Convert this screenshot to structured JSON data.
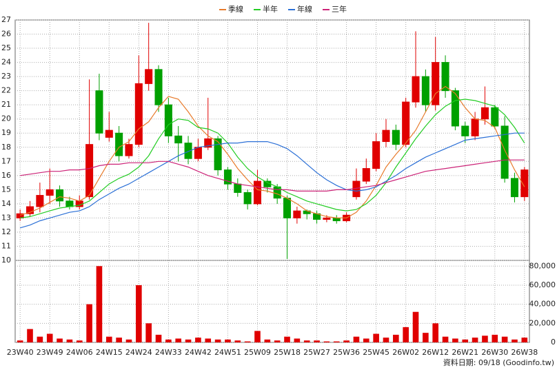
{
  "chart_data": {
    "type": "candlestick",
    "categories": [
      "23W40",
      null,
      null,
      "23W49",
      null,
      null,
      "24W06",
      null,
      null,
      "24W15",
      null,
      null,
      "24W24",
      null,
      null,
      "24W33",
      null,
      null,
      "24W42",
      null,
      null,
      "24W51",
      null,
      null,
      "25W09",
      null,
      null,
      "25W18",
      null,
      null,
      "25W27",
      null,
      null,
      "25W36",
      null,
      null,
      "25W45",
      null,
      null,
      "26W02",
      null,
      null,
      "26W12",
      null,
      null,
      "26W21",
      null,
      null,
      "26W30",
      null,
      null,
      "26W38"
    ],
    "open": [
      13.0,
      13.3,
      13.8,
      14.6,
      15.0,
      14.2,
      13.8,
      14.5,
      22.0,
      18.7,
      19.0,
      17.4,
      18.2,
      22.5,
      23.5,
      21.0,
      18.8,
      18.3,
      17.2,
      18.0,
      18.6,
      16.4,
      15.4,
      14.8,
      14.0,
      15.6,
      15.2,
      14.4,
      13.0,
      13.5,
      13.3,
      12.9,
      13.0,
      12.8,
      14.5,
      15.6,
      16.5,
      18.4,
      19.2,
      18.2,
      21.2,
      23.0,
      21.0,
      24.0,
      22.0,
      19.5,
      18.8,
      20.0,
      20.8,
      19.5,
      15.8,
      14.5
    ],
    "high": [
      13.6,
      14.2,
      15.5,
      16.5,
      15.3,
      14.5,
      14.6,
      22.8,
      23.2,
      20.5,
      19.5,
      18.6,
      24.5,
      26.8,
      23.8,
      21.5,
      19.5,
      18.8,
      18.6,
      21.5,
      18.8,
      16.6,
      15.8,
      15.0,
      16.4,
      15.8,
      15.4,
      14.6,
      13.8,
      13.6,
      13.5,
      13.2,
      13.2,
      13.4,
      16.5,
      17.2,
      19.0,
      20.0,
      19.6,
      21.5,
      26.2,
      23.5,
      25.8,
      24.5,
      22.2,
      19.8,
      20.5,
      22.3,
      21.0,
      20.2,
      16.2,
      16.6
    ],
    "low": [
      12.8,
      13.1,
      13.4,
      14.0,
      13.8,
      13.6,
      13.6,
      14.3,
      18.5,
      18.4,
      17.0,
      17.2,
      18.0,
      22.0,
      20.5,
      18.3,
      17.0,
      16.8,
      17.0,
      17.8,
      16.0,
      15.0,
      14.5,
      13.6,
      13.9,
      14.8,
      14.0,
      10.1,
      12.6,
      12.9,
      12.6,
      12.7,
      12.6,
      12.7,
      14.3,
      15.4,
      16.3,
      18.0,
      17.8,
      18.0,
      20.8,
      20.5,
      20.6,
      21.5,
      19.2,
      18.3,
      18.5,
      19.6,
      19.3,
      15.5,
      14.1,
      14.2
    ],
    "close": [
      13.3,
      13.8,
      14.6,
      15.0,
      14.2,
      13.8,
      14.2,
      18.2,
      19.0,
      19.2,
      17.4,
      18.2,
      22.5,
      23.5,
      21.0,
      18.8,
      18.3,
      17.2,
      18.0,
      18.6,
      16.4,
      15.4,
      14.8,
      14.0,
      15.6,
      15.2,
      14.4,
      13.0,
      13.5,
      13.3,
      12.9,
      13.0,
      12.8,
      13.2,
      15.6,
      16.5,
      18.4,
      19.2,
      18.2,
      21.2,
      23.0,
      21.0,
      24.0,
      22.0,
      19.5,
      18.8,
      20.0,
      20.8,
      19.5,
      15.8,
      14.5,
      16.4
    ],
    "up_color": "#e00000",
    "down_color": "#00a000",
    "volume": [
      2000,
      14000,
      6000,
      9000,
      4000,
      3000,
      2000,
      40000,
      80000,
      6000,
      5000,
      3000,
      60000,
      20000,
      8000,
      3000,
      4000,
      3000,
      5000,
      4000,
      3000,
      3000,
      2000,
      1000,
      12000,
      3000,
      2000,
      6000,
      4000,
      2000,
      2000,
      1000,
      1000,
      2000,
      6000,
      4000,
      9000,
      5000,
      8000,
      16000,
      32000,
      10000,
      20000,
      6000,
      4000,
      3000,
      5000,
      7000,
      8000,
      6000,
      3000,
      5000
    ],
    "volume_color": "#e00000",
    "lines": [
      {
        "name": "季線",
        "color": "#e87a2a",
        "values": [
          13.2,
          13.4,
          13.7,
          14.1,
          14.5,
          14.4,
          14.2,
          14.6,
          15.8,
          17.0,
          18.0,
          18.4,
          19.3,
          19.8,
          20.8,
          21.6,
          21.4,
          20.5,
          19.5,
          18.8,
          18.4,
          17.5,
          16.5,
          15.7,
          15.0,
          14.9,
          14.7,
          14.4,
          14.0,
          13.5,
          13.3,
          13.1,
          13.0,
          13.0,
          13.4,
          14.2,
          15.3,
          16.6,
          17.5,
          18.3,
          19.2,
          20.5,
          21.8,
          22.3,
          21.8,
          20.8,
          20.0,
          19.9,
          19.4,
          17.8,
          16.4,
          15.2
        ]
      },
      {
        "name": "半年",
        "color": "#22cc22",
        "values": [
          13.0,
          13.1,
          13.3,
          13.5,
          13.7,
          13.8,
          13.9,
          14.2,
          14.8,
          15.4,
          15.8,
          16.1,
          16.6,
          17.4,
          18.6,
          19.6,
          20.0,
          19.9,
          19.4,
          19.3,
          19.0,
          18.3,
          17.3,
          16.5,
          15.9,
          15.5,
          15.2,
          14.8,
          14.5,
          14.2,
          14.0,
          13.8,
          13.6,
          13.5,
          13.6,
          14.0,
          14.6,
          15.5,
          16.6,
          17.6,
          18.6,
          19.5,
          20.3,
          20.9,
          21.3,
          21.4,
          21.3,
          21.1,
          20.9,
          20.3,
          19.4,
          18.3
        ]
      },
      {
        "name": "年線",
        "color": "#2a6fd6",
        "values": [
          12.3,
          12.5,
          12.8,
          13.0,
          13.2,
          13.4,
          13.5,
          13.8,
          14.3,
          14.7,
          15.1,
          15.4,
          15.8,
          16.2,
          16.6,
          17.0,
          17.4,
          17.7,
          18.0,
          18.1,
          18.2,
          18.3,
          18.3,
          18.4,
          18.4,
          18.4,
          18.2,
          17.9,
          17.4,
          16.8,
          16.2,
          15.7,
          15.3,
          15.0,
          14.9,
          15.0,
          15.2,
          15.6,
          16.0,
          16.5,
          16.9,
          17.3,
          17.6,
          17.9,
          18.2,
          18.5,
          18.6,
          18.7,
          18.8,
          18.9,
          19.0,
          19.0
        ]
      },
      {
        "name": "三年",
        "color": "#cc2277",
        "values": [
          16.0,
          16.1,
          16.2,
          16.3,
          16.3,
          16.4,
          16.4,
          16.5,
          16.7,
          16.8,
          16.8,
          16.9,
          16.9,
          16.9,
          17.0,
          17.0,
          16.8,
          16.6,
          16.3,
          16.0,
          15.8,
          15.6,
          15.4,
          15.3,
          15.2,
          15.1,
          15.0,
          15.0,
          14.9,
          14.9,
          14.9,
          14.9,
          15.0,
          15.0,
          15.1,
          15.2,
          15.3,
          15.5,
          15.7,
          15.9,
          16.1,
          16.3,
          16.4,
          16.5,
          16.6,
          16.7,
          16.8,
          16.9,
          17.0,
          17.1,
          17.1,
          17.1
        ]
      }
    ],
    "ylim": [
      10,
      27
    ],
    "yticks": [
      10,
      11,
      12,
      13,
      14,
      15,
      16,
      17,
      18,
      19,
      20,
      21,
      22,
      23,
      24,
      25,
      26,
      27
    ],
    "y2lim": [
      0,
      86000
    ],
    "y2ticks": [
      0,
      {
        "value": 20000,
        "label": "20,000"
      },
      {
        "value": 40000,
        "label": "40,000"
      },
      {
        "value": 60000,
        "label": "60,000"
      },
      {
        "value": 80000,
        "label": "80,000"
      }
    ],
    "grid": true,
    "source": "資料日期: 09/18 (Goodinfo.tw)"
  }
}
